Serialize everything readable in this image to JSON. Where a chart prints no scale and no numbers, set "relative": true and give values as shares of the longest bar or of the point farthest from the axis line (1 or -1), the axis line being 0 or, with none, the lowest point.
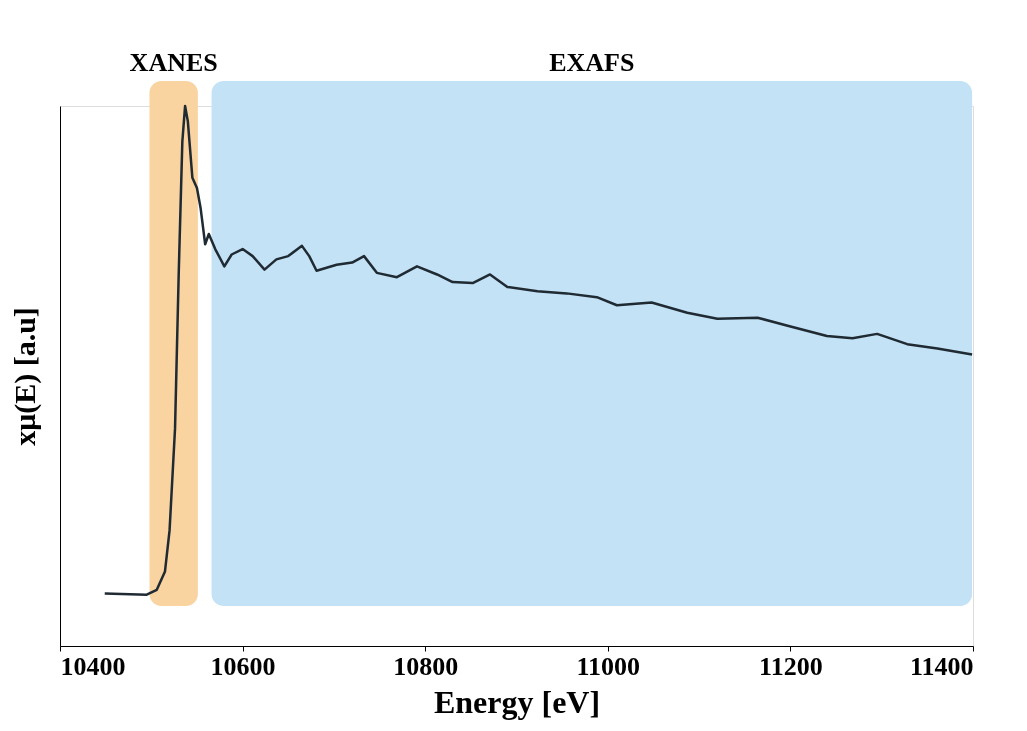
{
  "chart_data": {
    "type": "line",
    "relative": true,
    "xlabel": "Energy [eV]",
    "ylabel": "xμ(E) [a.u]",
    "xlim": [
      10400,
      11400
    ],
    "xticks": [
      10400,
      10600,
      10800,
      11000,
      11200,
      11400
    ],
    "tick_labels": "x",
    "grid": false,
    "x": [
      10449,
      10495,
      10506,
      10515,
      10520,
      10526,
      10530,
      10534,
      10537,
      10540,
      10545,
      10550,
      10554,
      10559,
      10563,
      10570,
      10580,
      10588,
      10600,
      10611,
      10624,
      10637,
      10650,
      10665,
      10673,
      10681,
      10703,
      10720,
      10733,
      10747,
      10769,
      10791,
      10813,
      10830,
      10852,
      10871,
      10890,
      10923,
      10955,
      10988,
      11010,
      11048,
      11087,
      11120,
      11164,
      11197,
      11240,
      11268,
      11295,
      11328,
      11361,
      11399
    ],
    "series": [
      {
        "color": "#1f2a33",
        "values": [
          0.097,
          0.095,
          0.104,
          0.138,
          0.214,
          0.403,
          0.688,
          0.934,
          1,
          0.972,
          0.867,
          0.848,
          0.811,
          0.744,
          0.763,
          0.735,
          0.703,
          0.725,
          0.735,
          0.722,
          0.697,
          0.716,
          0.722,
          0.741,
          0.722,
          0.695,
          0.706,
          0.71,
          0.722,
          0.691,
          0.683,
          0.703,
          0.688,
          0.674,
          0.672,
          0.688,
          0.665,
          0.657,
          0.653,
          0.646,
          0.631,
          0.636,
          0.617,
          0.606,
          0.608,
          0.593,
          0.574,
          0.57,
          0.578,
          0.559,
          0.551,
          0.54
        ]
      }
    ],
    "bands": [
      {
        "axis": "x",
        "from": 10498,
        "to": 10551,
        "label": "XANES",
        "color": "#f9d3a0"
      },
      {
        "axis": "x",
        "from": 10566,
        "to": 11399,
        "label": "EXAFS",
        "color": "#c3e2f5"
      }
    ]
  }
}
